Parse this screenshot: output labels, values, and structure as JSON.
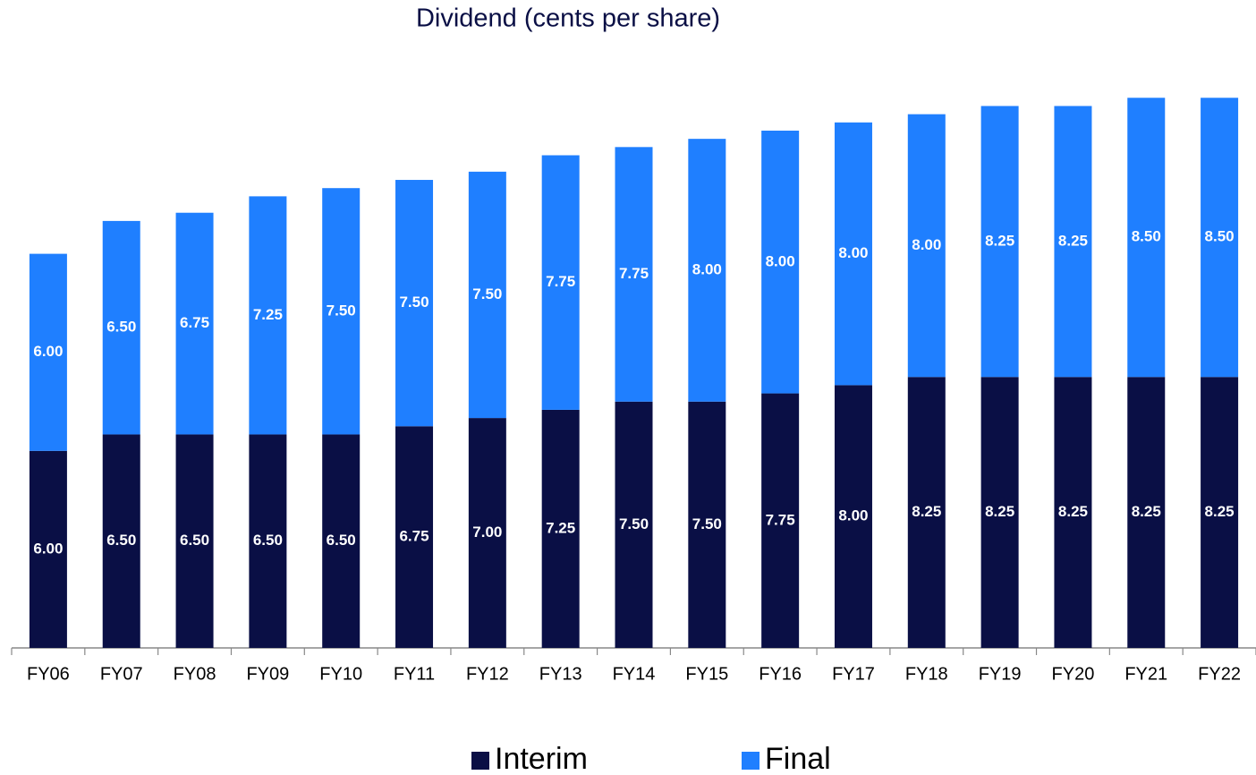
{
  "chart_data": {
    "type": "stacked_bar",
    "title": "Dividend (cents per share)",
    "categories": [
      "FY06",
      "FY07",
      "FY08",
      "FY09",
      "FY10",
      "FY11",
      "FY12",
      "FY13",
      "FY14",
      "FY15",
      "FY16",
      "FY17",
      "FY18",
      "FY19",
      "FY20",
      "FY21",
      "FY22"
    ],
    "series": [
      {
        "name": "Interim",
        "color": "#0a0f45",
        "values": [
          6,
          6.5,
          6.5,
          6.5,
          6.5,
          6.75,
          7,
          7.25,
          7.5,
          7.5,
          7.75,
          8,
          8.25,
          8.25,
          8.25,
          8.25,
          8.25
        ],
        "value_labels": [
          "6.00",
          "6.50",
          "6.50",
          "6.50",
          "6.50",
          "6.75",
          "7.00",
          "7.25",
          "7.50",
          "7.50",
          "7.75",
          "8.00",
          "8.25",
          "8.25",
          "8.25",
          "8.25",
          "8.25"
        ]
      },
      {
        "name": "Final",
        "color": "#1f7fff",
        "values": [
          6,
          6.5,
          6.75,
          7.25,
          7.5,
          7.5,
          7.5,
          7.75,
          7.75,
          8,
          8,
          8,
          8,
          8.25,
          8.25,
          8.5,
          8.5
        ],
        "value_labels": [
          "6.00",
          "6.50",
          "6.75",
          "7.25",
          "7.50",
          "7.50",
          "7.50",
          "7.75",
          "7.75",
          "8.00",
          "8.00",
          "8.00",
          "8.00",
          "8.25",
          "8.25",
          "8.50",
          "8.50"
        ]
      }
    ]
  }
}
